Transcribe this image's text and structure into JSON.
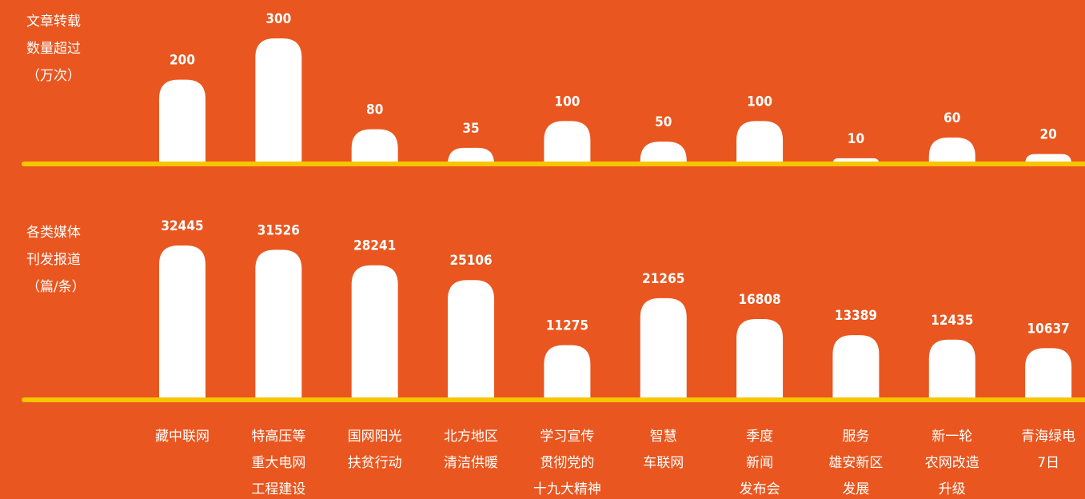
{
  "chart_data": {
    "type": "bar",
    "categories": [
      [
        "藏中联网"
      ],
      [
        "特高压等",
        "重大电网",
        "工程建设"
      ],
      [
        "国网阳光",
        "扶贫行动"
      ],
      [
        "北方地区",
        "清洁供暖"
      ],
      [
        "学习宣传",
        "贯彻党的",
        "十九大精神"
      ],
      [
        "智慧",
        "车联网"
      ],
      [
        "季度",
        "新闻",
        "发布会"
      ],
      [
        "服务",
        "雄安新区",
        "发展"
      ],
      [
        "新一轮",
        "农网改造",
        "升级"
      ],
      [
        "青海绿电",
        "7日"
      ]
    ],
    "series": [
      {
        "name": [
          "文章转载",
          "数量超过",
          "（万次）"
        ],
        "color": "#ffffff",
        "values": [
          200,
          300,
          80,
          35,
          100,
          50,
          100,
          10,
          60,
          20
        ]
      },
      {
        "name": [
          "各类媒体",
          "刊发报道",
          "（篇/条）"
        ],
        "color": "#ffffff",
        "values": [
          32445,
          31526,
          28241,
          25106,
          11275,
          21265,
          16808,
          13389,
          12435,
          10637
        ]
      }
    ],
    "baseline_color": "#f7c600"
  }
}
